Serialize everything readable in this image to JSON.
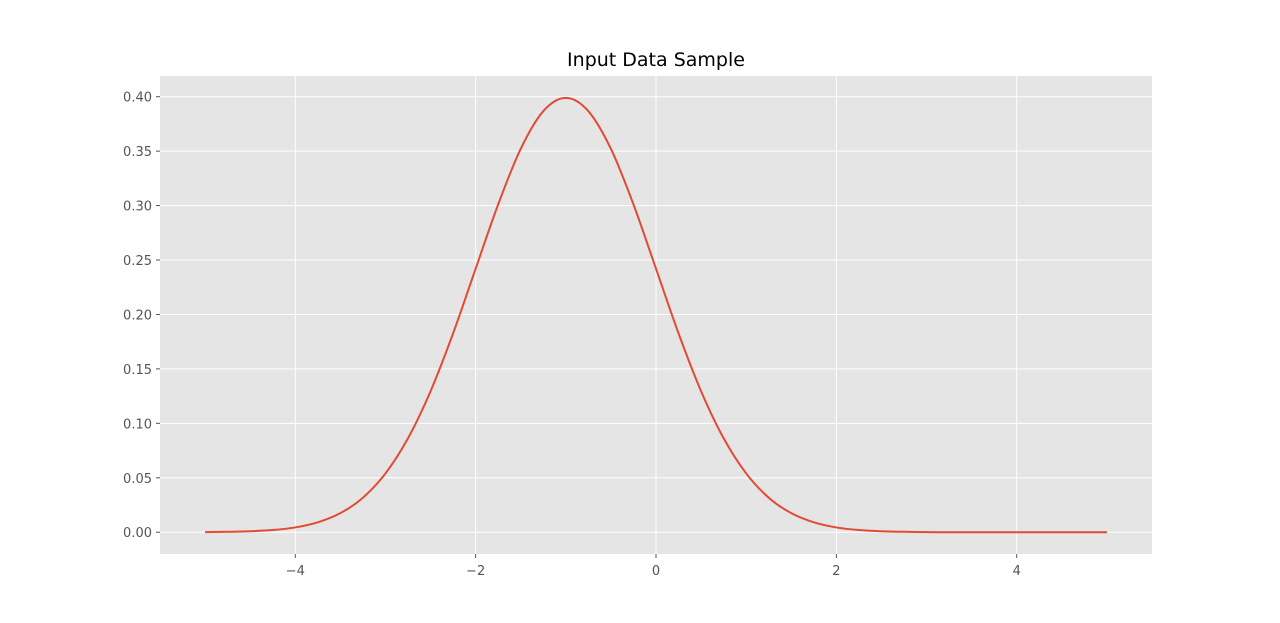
{
  "chart_data": {
    "type": "line",
    "title": "Input Data Sample",
    "xlabel": "",
    "ylabel": "",
    "xlim": [
      -5.5,
      5.5
    ],
    "ylim": [
      -0.02,
      0.419
    ],
    "x_ticks": [
      -4,
      -2,
      0,
      2,
      4
    ],
    "x_tick_labels": [
      "−4",
      "−2",
      "0",
      "2",
      "4"
    ],
    "y_ticks": [
      0.0,
      0.05,
      0.1,
      0.15,
      0.2,
      0.25,
      0.3,
      0.35,
      0.4
    ],
    "y_tick_labels": [
      "0.00",
      "0.05",
      "0.10",
      "0.15",
      "0.20",
      "0.25",
      "0.30",
      "0.35",
      "0.40"
    ],
    "grid": true,
    "style": {
      "background": "#e5e5e5",
      "grid_color": "#ffffff",
      "line_color": "#e24a33"
    },
    "series": [
      {
        "x": [
          -5.0,
          -4.75,
          -4.5,
          -4.25,
          -4.0,
          -3.75,
          -3.5,
          -3.25,
          -3.0,
          -2.75,
          -2.5,
          -2.25,
          -2.0,
          -1.75,
          -1.5,
          -1.25,
          -1.0,
          -0.75,
          -0.5,
          -0.25,
          0.0,
          0.25,
          0.5,
          0.75,
          1.0,
          1.25,
          1.5,
          1.75,
          2.0,
          2.25,
          2.5,
          2.75,
          3.0,
          3.25,
          3.5,
          3.75,
          4.0,
          4.25,
          4.5,
          4.75,
          5.0
        ],
        "y": [
          0.0001,
          0.0004,
          0.0009,
          0.002,
          0.0044,
          0.0091,
          0.0175,
          0.0317,
          0.054,
          0.0863,
          0.1295,
          0.1826,
          0.242,
          0.3011,
          0.3521,
          0.3867,
          0.3989,
          0.3867,
          0.3521,
          0.3011,
          0.242,
          0.1826,
          0.1295,
          0.0863,
          0.054,
          0.0317,
          0.0175,
          0.0091,
          0.0044,
          0.002,
          0.0009,
          0.0004,
          0.0001,
          0.0,
          0.0,
          0.0,
          0.0,
          0.0,
          0.0,
          0.0,
          0.0
        ]
      }
    ]
  }
}
